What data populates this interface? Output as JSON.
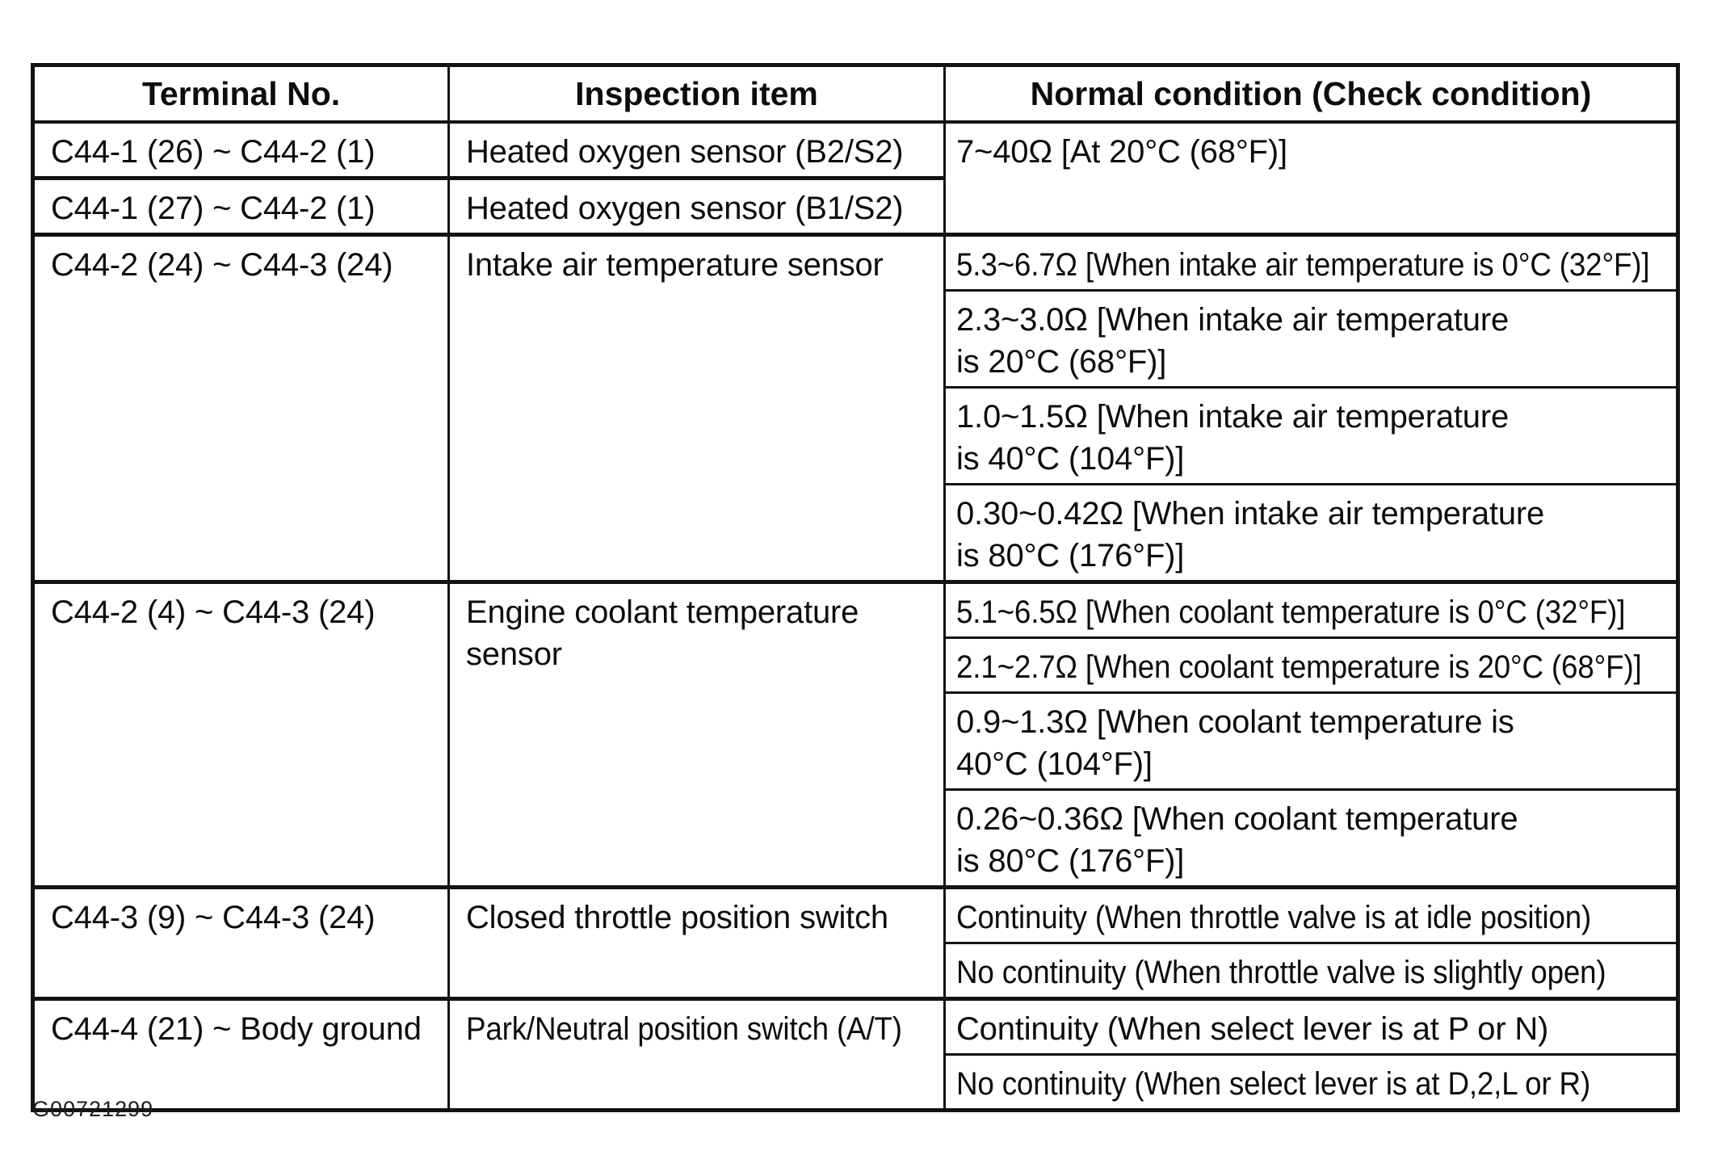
{
  "page": {
    "background_color": "#ffffff",
    "ink_color": "#131313",
    "figure_id": "G00721299"
  },
  "table": {
    "headers": [
      "Terminal No.",
      "Inspection item",
      "Normal condition (Check condition)"
    ],
    "sections": [
      {
        "rows": [
          {
            "terminal": "C44-1 (26) ~ C44-2 (1)",
            "item": "Heated oxygen sensor (B2/S2)"
          },
          {
            "terminal": "C44-1 (27) ~ C44-2 (1)",
            "item": "Heated oxygen sensor (B1/S2)"
          }
        ],
        "conditions": [
          "7~40Ω [At 20°C (68°F)]"
        ]
      },
      {
        "rows": [
          {
            "terminal": "C44-2 (24) ~ C44-3 (24)",
            "item": "Intake air temperature sensor"
          }
        ],
        "conditions": [
          "5.3~6.7Ω [When intake air temperature is 0°C (32°F)]",
          "2.3~3.0Ω [When intake air temperature\nis 20°C (68°F)]",
          "1.0~1.5Ω [When intake air temperature\nis 40°C (104°F)]",
          "0.30~0.42Ω [When intake air temperature\nis 80°C (176°F)]"
        ]
      },
      {
        "rows": [
          {
            "terminal": "C44-2 (4) ~ C44-3 (24)",
            "item": "Engine coolant temperature\nsensor"
          }
        ],
        "conditions": [
          "5.1~6.5Ω [When coolant temperature is 0°C (32°F)]",
          "2.1~2.7Ω [When coolant temperature is 20°C (68°F)]",
          "0.9~1.3Ω [When coolant temperature is\n40°C (104°F)]",
          "0.26~0.36Ω [When coolant temperature\nis 80°C (176°F)]"
        ]
      },
      {
        "rows": [
          {
            "terminal": "C44-3 (9) ~ C44-3 (24)",
            "item": "Closed throttle position switch"
          }
        ],
        "conditions": [
          "Continuity (When throttle valve is at idle position)",
          "No continuity (When throttle valve is slightly open)"
        ]
      },
      {
        "rows": [
          {
            "terminal": "C44-4 (21) ~ Body ground",
            "item": "Park/Neutral position switch (A/T)"
          }
        ],
        "conditions": [
          "Continuity (When select lever is at P or N)",
          "No continuity (When select lever is at D,2,L or R)"
        ]
      }
    ]
  }
}
